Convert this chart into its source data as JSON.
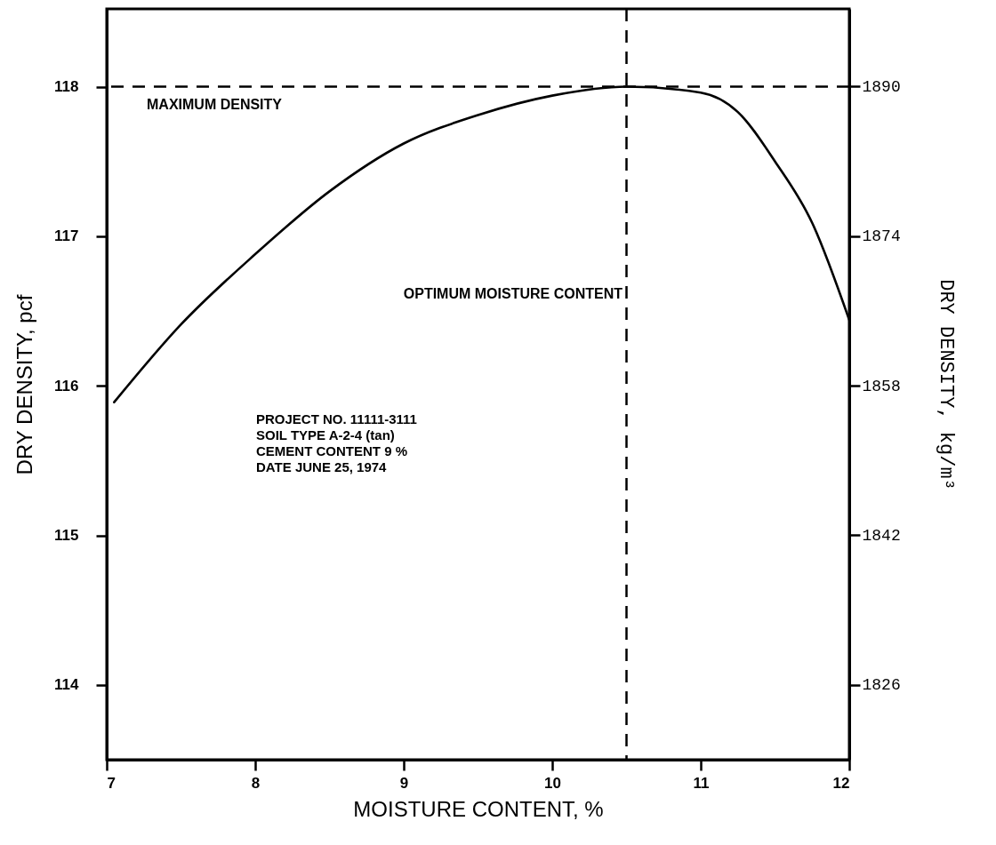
{
  "chart_data": {
    "type": "line",
    "xlabel": "MOISTURE CONTENT, %",
    "ylabel": "DRY DENSITY, pcf",
    "y2label": "DRY DENSITY, kg/m³",
    "x": [
      7.05,
      7.5,
      8,
      8.5,
      9,
      9.5,
      10,
      10.5,
      11,
      11.25,
      11.5,
      11.75,
      12
    ],
    "series": [
      {
        "color": "#000000",
        "values": [
          115.89,
          116.41,
          116.88,
          117.3,
          117.62,
          117.81,
          117.94,
          118.0,
          117.96,
          117.83,
          117.5,
          117.09,
          116.44
        ]
      }
    ],
    "xlim": [
      7,
      12
    ],
    "xticks": [
      7,
      8,
      9,
      10,
      11,
      12
    ],
    "ylim": [
      113.5,
      118.52
    ],
    "yticks": [
      114,
      115,
      116,
      117,
      118
    ],
    "y2lim": [
      1818,
      1898.3
    ],
    "y2ticks": [
      1826,
      1842,
      1858,
      1874,
      1890
    ],
    "line_style": "solid",
    "ref_lines": [
      {
        "axis": "y",
        "value": 118,
        "line_style": "dashed",
        "color": "#000000"
      },
      {
        "axis": "x",
        "value": 10.5,
        "line_style": "dashed",
        "color": "#000000"
      }
    ],
    "annotations": [
      "MAXIMUM DENSITY",
      "OPTIMUM MOISTURE CONTENT",
      "PROJECT NO. 11111-3111",
      "SOIL TYPE A-2-4 (tan)",
      "CEMENT CONTENT 9 %",
      "DATE JUNE 25, 1974"
    ]
  }
}
